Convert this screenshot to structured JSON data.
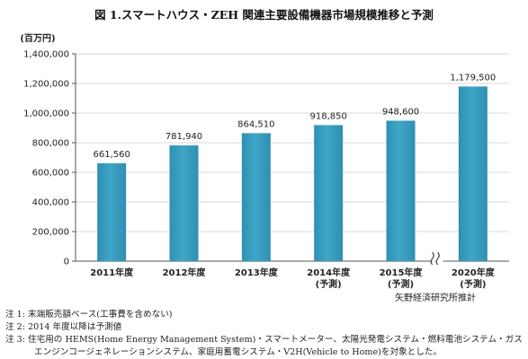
{
  "chart_data": {
    "type": "bar",
    "title": "図 1.スマートハウス・ZEH 関連主要設備機器市場規模推移と予測",
    "ylabel": "(百万円)",
    "xlabel": "",
    "ylim": [
      0,
      1400000
    ],
    "yticks": [
      0,
      200000,
      400000,
      600000,
      800000,
      1000000,
      1200000,
      1400000
    ],
    "ytick_labels": [
      "0",
      "200,000",
      "400,000",
      "600,000",
      "800,000",
      "1,000,000",
      "1,200,000",
      "1,400,000"
    ],
    "grid": true,
    "bar_color": "#3FA6C8",
    "axis_break_before_category_index": 5,
    "categories": [
      [
        "2011年度"
      ],
      [
        "2012年度"
      ],
      [
        "2013年度"
      ],
      [
        "2014年度",
        "(予測)"
      ],
      [
        "2015年度",
        "(予測)"
      ],
      [
        "2020年度",
        "(予測)"
      ]
    ],
    "values": [
      661560,
      781940,
      864510,
      918850,
      948600,
      1179500
    ],
    "value_labels": [
      "661,560",
      "781,940",
      "864,510",
      "918,850",
      "948,600",
      "1,179,500"
    ]
  },
  "source": "矢野経済研究所推計",
  "notes": [
    "注 1:  末端販売額ベース(工事費を含めない)",
    "注 2:  2014 年度以降は予測値",
    "注 3:  住宅用の HEMS(Home Energy Management System)・スマートメーター、太陽光発電システム・燃料電池システム・ガス",
    "エンジンコージェネレーションシステム、家庭用蓄電システム・V2H(Vehicle to Home)を対象とした。"
  ]
}
